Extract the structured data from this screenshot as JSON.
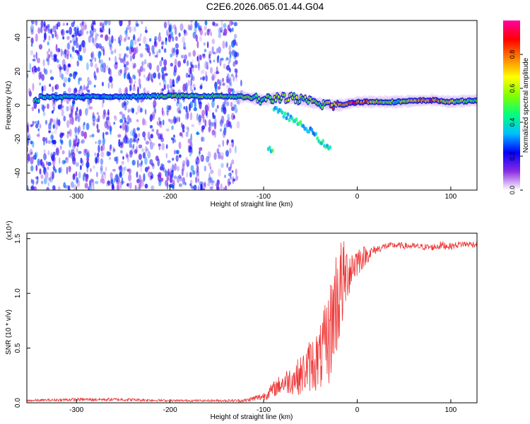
{
  "title": "C2E6.2026.065.01.44.G04",
  "chart_data": [
    {
      "type": "heatmap",
      "xlabel": "Height of straight line (km)",
      "ylabel": "Frequency (Hz)",
      "xlim": [
        -353,
        128
      ],
      "ylim": [
        -50,
        50
      ],
      "x_ticks": [
        -300,
        -200,
        -100,
        0,
        100
      ],
      "y_ticks": [
        -40,
        -20,
        0,
        20,
        40
      ],
      "colorbar": {
        "label": "Normalized spectral amplitude",
        "range": [
          0,
          1
        ],
        "ticks": [
          "0.0",
          "0.2",
          "0.4",
          "0.6",
          "0.8"
        ],
        "colors": [
          "#ffffff",
          "#8a2be2",
          "#0000ff",
          "#00bfff",
          "#00ff80",
          "#80ff00",
          "#ffff00",
          "#ff8000",
          "#ff0000",
          "#ff00a0"
        ]
      },
      "ridge": [
        {
          "x": -340,
          "f": 5,
          "amp": 0.45
        },
        {
          "x": -300,
          "f": 5,
          "amp": 0.4
        },
        {
          "x": -250,
          "f": 5,
          "amp": 0.35
        },
        {
          "x": -200,
          "f": 5.5,
          "amp": 0.5
        },
        {
          "x": -150,
          "f": 5.5,
          "amp": 0.5
        },
        {
          "x": -120,
          "f": 5,
          "amp": 0.5
        },
        {
          "x": -100,
          "f": 3,
          "amp": 0.55
        },
        {
          "x": -80,
          "f": 5,
          "amp": 0.6
        },
        {
          "x": -60,
          "f": 3,
          "amp": 0.6
        },
        {
          "x": -40,
          "f": 1,
          "amp": 0.6
        },
        {
          "x": -20,
          "f": 0,
          "amp": 0.85
        },
        {
          "x": 0,
          "f": 2,
          "amp": 0.9
        },
        {
          "x": 40,
          "f": 2,
          "amp": 0.5
        },
        {
          "x": 80,
          "f": 3,
          "amp": 0.9
        },
        {
          "x": 100,
          "f": 2,
          "amp": 0.6
        },
        {
          "x": 128,
          "f": 3,
          "amp": 0.5
        }
      ],
      "branch": [
        {
          "x": -90,
          "f": -2
        },
        {
          "x": -70,
          "f": -8
        },
        {
          "x": -50,
          "f": -15
        },
        {
          "x": -30,
          "f": -26
        }
      ]
    },
    {
      "type": "line",
      "xlabel": "Height of straight line (km)",
      "ylabel": "SNR (10 * v/v)",
      "scale_label": "(x10⁴)",
      "xlim": [
        -353,
        128
      ],
      "ylim": [
        0,
        1.55
      ],
      "x_ticks": [
        -300,
        -200,
        -100,
        0,
        100
      ],
      "y_ticks": [
        "0.0",
        "0.5",
        "1.0",
        "1.5"
      ],
      "color": "#ee3333",
      "series": [
        {
          "x": [
            -353,
            -300,
            -250,
            -200,
            -150,
            -120,
            -100,
            -80,
            -60,
            -50,
            -40,
            -30,
            -25,
            -20,
            -15,
            -10,
            0,
            10,
            20,
            30,
            40,
            60,
            80,
            90,
            100,
            110,
            128
          ],
          "y": [
            0.02,
            0.03,
            0.03,
            0.02,
            0.02,
            0.02,
            0.06,
            0.18,
            0.25,
            0.35,
            0.4,
            0.6,
            0.85,
            1.0,
            1.1,
            1.2,
            1.3,
            1.35,
            1.4,
            1.43,
            1.44,
            1.43,
            1.42,
            1.44,
            1.43,
            1.45,
            1.45
          ],
          "noise": [
            0.01,
            0.015,
            0.015,
            0.01,
            0.01,
            0.015,
            0.04,
            0.1,
            0.18,
            0.25,
            0.3,
            0.45,
            0.5,
            0.55,
            0.4,
            0.25,
            0.15,
            0.08,
            0.04,
            0.03,
            0.03,
            0.03,
            0.03,
            0.04,
            0.03,
            0.03,
            0.03
          ]
        }
      ]
    }
  ]
}
